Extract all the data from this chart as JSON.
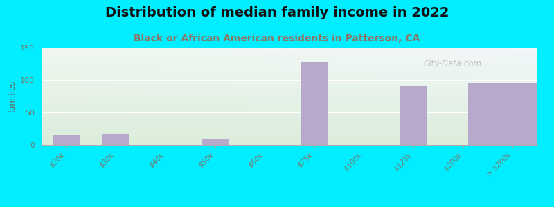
{
  "title": "Distribution of median family income in 2022",
  "subtitle": "Black or African American residents in Patterson, CA",
  "categories": [
    "$20k",
    "$30k",
    "$40k",
    "$50k",
    "$60k",
    "$75k",
    "$100k",
    "$125k",
    "$200k",
    "> $200k"
  ],
  "values": [
    15,
    17,
    0,
    10,
    0,
    128,
    0,
    90,
    0,
    95
  ],
  "bar_color": "#b8a9cc",
  "background_outer": "#00eeff",
  "ylabel": "families",
  "ylim": [
    0,
    150
  ],
  "yticks": [
    0,
    50,
    100,
    150
  ],
  "title_fontsize": 14,
  "subtitle_fontsize": 10,
  "watermark": "City-Data.com",
  "subtitle_color": "#888866",
  "grid_color": "#dddddd",
  "tick_label_color": "#777766"
}
